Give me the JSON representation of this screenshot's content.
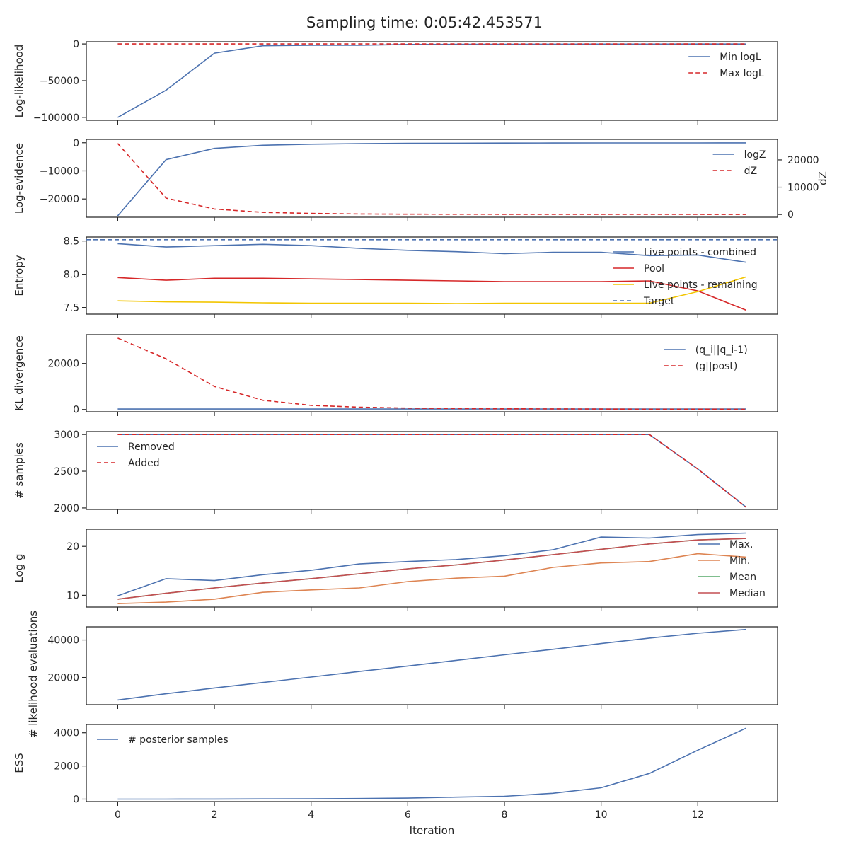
{
  "figure": {
    "title": "Sampling time: 0:05:42.453571"
  },
  "chart_data": [
    {
      "type": "line",
      "ylabel": "Log-likelihood",
      "ylim": [
        -104000,
        3000
      ],
      "yticks": [
        0,
        -50000,
        -100000
      ],
      "ytick_labels": [
        "0",
        "−50000",
        "−100000"
      ],
      "legend": "top-right",
      "x": [
        0,
        1,
        2,
        3,
        4,
        5,
        6,
        7,
        8,
        9,
        10,
        11,
        12,
        13
      ],
      "series": [
        {
          "name": "Min logL",
          "color": "#4c72b0",
          "dash": "solid",
          "values": [
            -100000,
            -63000,
            -12500,
            -2500,
            -1800,
            -1800,
            -700,
            -500,
            -400,
            -300,
            -200,
            -150,
            -100,
            -50
          ]
        },
        {
          "name": "Max logL",
          "color": "#d62728",
          "dash": "dashed",
          "values": [
            0,
            0,
            0,
            0,
            0,
            0,
            0,
            0,
            0,
            0,
            0,
            0,
            0,
            0
          ]
        }
      ]
    },
    {
      "type": "line",
      "ylabel": "Log-evidence",
      "ylim": [
        -26500,
        1200
      ],
      "yticks": [
        0,
        -10000,
        -20000
      ],
      "ytick_labels": [
        "0",
        "−10000",
        "−20000"
      ],
      "y2label": "dZ",
      "y2lim": [
        -1000,
        27500
      ],
      "y2ticks": [
        0,
        10000,
        20000
      ],
      "y2tick_labels": [
        "0",
        "10000",
        "20000"
      ],
      "legend": "top-right",
      "x": [
        0,
        1,
        2,
        3,
        4,
        5,
        6,
        7,
        8,
        9,
        10,
        11,
        12,
        13
      ],
      "series": [
        {
          "name": "logZ",
          "color": "#4c72b0",
          "dash": "solid",
          "axis": "left",
          "values": [
            -26000,
            -6000,
            -2000,
            -900,
            -500,
            -300,
            -200,
            -150,
            -100,
            -80,
            -70,
            -60,
            -50,
            -40
          ]
        },
        {
          "name": "dZ",
          "color": "#d62728",
          "dash": "dashed",
          "axis": "right",
          "values": [
            26000,
            6000,
            2000,
            800,
            400,
            200,
            120,
            80,
            60,
            50,
            40,
            30,
            25,
            20
          ]
        }
      ]
    },
    {
      "type": "line",
      "ylabel": "Entropy",
      "ylim": [
        7.4,
        8.56
      ],
      "yticks": [
        7.5,
        8.0,
        8.5
      ],
      "ytick_labels": [
        "7.5",
        "8.0",
        "8.5"
      ],
      "legend": "right",
      "x": [
        0,
        1,
        2,
        3,
        4,
        5,
        6,
        7,
        8,
        9,
        10,
        11,
        12,
        13
      ],
      "series": [
        {
          "name": "Live points - combined",
          "color": "#4c72b0",
          "dash": "solid",
          "values": [
            8.46,
            8.41,
            8.43,
            8.45,
            8.43,
            8.39,
            8.36,
            8.34,
            8.31,
            8.33,
            8.33,
            8.28,
            8.29,
            8.18
          ]
        },
        {
          "name": "Pool",
          "color": "#d62728",
          "dash": "solid",
          "values": [
            7.95,
            7.91,
            7.94,
            7.94,
            7.93,
            7.92,
            7.91,
            7.9,
            7.89,
            7.89,
            7.89,
            7.9,
            7.75,
            7.46
          ]
        },
        {
          "name": "Live points - remaining",
          "color": "#f2c500",
          "dash": "solid",
          "values": [
            7.6,
            7.585,
            7.58,
            7.57,
            7.565,
            7.565,
            7.565,
            7.56,
            7.565,
            7.565,
            7.565,
            7.565,
            7.74,
            7.96
          ]
        },
        {
          "name": "Target",
          "color": "#4c72b0",
          "dash": "dashed",
          "extend": true,
          "values": [
            8.52,
            8.52,
            8.52,
            8.52,
            8.52,
            8.52,
            8.52,
            8.52,
            8.52,
            8.52,
            8.52,
            8.52,
            8.52,
            8.52
          ]
        }
      ]
    },
    {
      "type": "line",
      "ylabel": "KL divergence",
      "ylim": [
        -1000,
        32500
      ],
      "yticks": [
        0,
        20000
      ],
      "ytick_labels": [
        "0",
        "20000"
      ],
      "legend": "top-right",
      "x": [
        0,
        1,
        2,
        3,
        4,
        5,
        6,
        7,
        8,
        9,
        10,
        11,
        12,
        13
      ],
      "series": [
        {
          "name": "(q_i||q_i-1)",
          "color": "#4c72b0",
          "dash": "solid",
          "values": [
            200,
            200,
            200,
            200,
            200,
            200,
            200,
            200,
            200,
            200,
            200,
            200,
            200,
            200
          ]
        },
        {
          "name": "(g||post)",
          "color": "#d62728",
          "dash": "dashed",
          "values": [
            31000,
            22000,
            10000,
            4000,
            1800,
            1000,
            600,
            400,
            300,
            250,
            200,
            150,
            150,
            100
          ]
        }
      ]
    },
    {
      "type": "line",
      "ylabel": "# samples",
      "ylim": [
        1980,
        3040
      ],
      "yticks": [
        2000,
        2500,
        3000
      ],
      "ytick_labels": [
        "2000",
        "2500",
        "3000"
      ],
      "legend": "top-left",
      "x": [
        0,
        1,
        2,
        3,
        4,
        5,
        6,
        7,
        8,
        9,
        10,
        11,
        12,
        13
      ],
      "series": [
        {
          "name": "Removed",
          "color": "#4c72b0",
          "dash": "solid",
          "values": [
            3000,
            3000,
            3000,
            3000,
            3000,
            3000,
            3000,
            3000,
            3000,
            3000,
            3000,
            3000,
            2530,
            2010
          ]
        },
        {
          "name": "Added",
          "color": "#d62728",
          "dash": "dashed",
          "values": [
            3000,
            3000,
            3000,
            3000,
            3000,
            3000,
            3000,
            3000,
            3000,
            3000,
            3000,
            3000,
            2530,
            2010
          ]
        }
      ]
    },
    {
      "type": "line",
      "ylabel": "Log g",
      "ylim": [
        7.6,
        23.5
      ],
      "yticks": [
        10,
        20
      ],
      "ytick_labels": [
        "10",
        "20"
      ],
      "legend": "right",
      "x": [
        0,
        1,
        2,
        3,
        4,
        5,
        6,
        7,
        8,
        9,
        10,
        11,
        12,
        13
      ],
      "series": [
        {
          "name": "Max.",
          "color": "#4c72b0",
          "dash": "solid",
          "values": [
            9.9,
            13.4,
            13.0,
            14.2,
            15.1,
            16.4,
            16.9,
            17.3,
            18.1,
            19.3,
            21.9,
            21.7,
            22.4,
            22.7
          ]
        },
        {
          "name": "Min.",
          "color": "#dd8452",
          "dash": "solid",
          "values": [
            8.3,
            8.6,
            9.2,
            10.6,
            11.1,
            11.5,
            12.8,
            13.5,
            13.9,
            15.7,
            16.6,
            16.9,
            18.5,
            17.8
          ]
        },
        {
          "name": "Mean",
          "color": "#55a868",
          "dash": "solid",
          "values": [
            9.2,
            10.4,
            11.5,
            12.5,
            13.4,
            14.4,
            15.4,
            16.2,
            17.2,
            18.3,
            19.4,
            20.5,
            21.3,
            21.6
          ]
        },
        {
          "name": "Median",
          "color": "#c44e52",
          "dash": "solid",
          "values": [
            9.2,
            10.4,
            11.5,
            12.5,
            13.4,
            14.4,
            15.4,
            16.2,
            17.2,
            18.3,
            19.4,
            20.5,
            21.3,
            21.6
          ]
        }
      ]
    },
    {
      "type": "line",
      "ylabel": "# likelihood evaluations",
      "ylim": [
        5500,
        47000
      ],
      "yticks": [
        20000,
        40000
      ],
      "ytick_labels": [
        "20000",
        "40000"
      ],
      "legend": "none",
      "x": [
        0,
        1,
        2,
        3,
        4,
        5,
        6,
        7,
        8,
        9,
        10,
        11,
        12,
        13
      ],
      "series": [
        {
          "name": "",
          "color": "#4c72b0",
          "dash": "solid",
          "values": [
            8000,
            11300,
            14400,
            17300,
            20200,
            23200,
            26100,
            29100,
            32100,
            35000,
            38100,
            41000,
            43600,
            45600
          ]
        }
      ]
    },
    {
      "type": "line",
      "ylabel": "ESS",
      "ylim": [
        -150,
        4500
      ],
      "yticks": [
        0,
        2000,
        4000
      ],
      "ytick_labels": [
        "0",
        "2000",
        "4000"
      ],
      "xlabel": "Iteration",
      "xticks": [
        0,
        2,
        4,
        6,
        8,
        10,
        12
      ],
      "xtick_labels": [
        "0",
        "2",
        "4",
        "6",
        "8",
        "10",
        "12"
      ],
      "legend": "top-left",
      "x": [
        0,
        1,
        2,
        3,
        4,
        5,
        6,
        7,
        8,
        9,
        10,
        11,
        12,
        13
      ],
      "series": [
        {
          "name": "# posterior samples",
          "color": "#4c72b0",
          "dash": "solid",
          "values": [
            0,
            0,
            5,
            10,
            20,
            35,
            60,
            120,
            170,
            350,
            680,
            1550,
            2950,
            4280
          ]
        }
      ]
    }
  ]
}
